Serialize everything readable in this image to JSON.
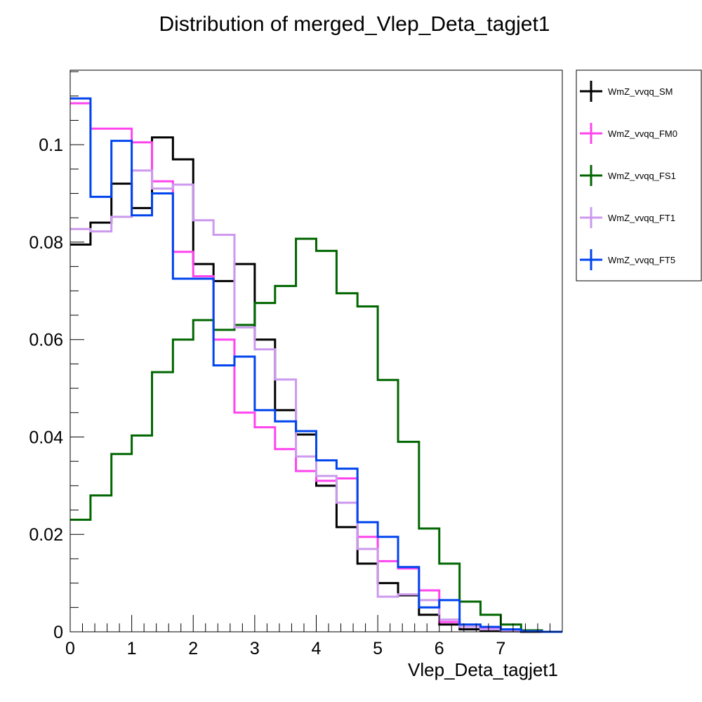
{
  "chart_data": {
    "type": "line",
    "title": "Distribution of merged_Vlep_Deta_tagjet1",
    "xlabel": "Vlep_Deta_tagjet1",
    "ylabel": "",
    "xlim": [
      0,
      8
    ],
    "ylim": [
      0,
      0.1153
    ],
    "x_ticks": [
      {
        "value": 0,
        "label": "0"
      },
      {
        "value": 1,
        "label": "1"
      },
      {
        "value": 2,
        "label": "2"
      },
      {
        "value": 3,
        "label": "3"
      },
      {
        "value": 4,
        "label": "4"
      },
      {
        "value": 5,
        "label": "5"
      },
      {
        "value": 6,
        "label": "6"
      },
      {
        "value": 7,
        "label": "7"
      }
    ],
    "y_ticks": [
      {
        "value": 0,
        "label": "0"
      },
      {
        "value": 0.02,
        "label": "0.02"
      },
      {
        "value": 0.04,
        "label": "0.04"
      },
      {
        "value": 0.06,
        "label": "0.06"
      },
      {
        "value": 0.08,
        "label": "0.08"
      },
      {
        "value": 0.1,
        "label": "0.1"
      }
    ],
    "grid": false,
    "legend_position": "right",
    "histogram": true,
    "bin_edges": [
      0,
      0.33,
      0.67,
      1.0,
      1.33,
      1.67,
      2.0,
      2.33,
      2.67,
      3.0,
      3.33,
      3.67,
      4.0,
      4.33,
      4.67,
      5.0,
      5.33,
      5.67,
      6.0,
      6.33,
      6.67,
      7.0,
      7.33,
      7.67,
      8.0
    ],
    "series": [
      {
        "name": "WmZ_vvqq_SM",
        "color": "#000000",
        "values": [
          0.0795,
          0.084,
          0.092,
          0.087,
          0.1015,
          0.097,
          0.0755,
          0.072,
          0.0755,
          0.06,
          0.0455,
          0.0405,
          0.03,
          0.0215,
          0.014,
          0.01,
          0.0075,
          0.0035,
          0.0015,
          0.0005,
          0.0002,
          0.0001,
          0.0,
          0.0
        ]
      },
      {
        "name": "WmZ_vvqq_FM0",
        "color": "#ff44ee",
        "values": [
          0.1085,
          0.1033,
          0.1033,
          0.1005,
          0.0925,
          0.078,
          0.073,
          0.06,
          0.045,
          0.042,
          0.0375,
          0.033,
          0.031,
          0.0315,
          0.0195,
          0.0145,
          0.013,
          0.0085,
          0.002,
          0.001,
          0.0008,
          0.0005,
          0.0002,
          0.0
        ]
      },
      {
        "name": "WmZ_vvqq_FS1",
        "color": "#006600",
        "values": [
          0.023,
          0.028,
          0.0365,
          0.0403,
          0.0533,
          0.06,
          0.064,
          0.062,
          0.063,
          0.0675,
          0.071,
          0.0807,
          0.0782,
          0.0695,
          0.0668,
          0.0517,
          0.039,
          0.0212,
          0.014,
          0.0062,
          0.0035,
          0.0015,
          0.0003,
          0.0
        ]
      },
      {
        "name": "WmZ_vvqq_FT1",
        "color": "#cc99ee",
        "values": [
          0.0827,
          0.0822,
          0.0852,
          0.0947,
          0.091,
          0.0918,
          0.0845,
          0.0815,
          0.0625,
          0.058,
          0.0518,
          0.036,
          0.032,
          0.0265,
          0.017,
          0.0072,
          0.0077,
          0.0065,
          0.0025,
          0.001,
          0.0005,
          0.0002,
          0.0001,
          0.0
        ]
      },
      {
        "name": "WmZ_vvqq_FT5",
        "color": "#0044ee",
        "values": [
          0.1095,
          0.0893,
          0.1008,
          0.0855,
          0.09,
          0.0725,
          0.0725,
          0.0547,
          0.0565,
          0.0455,
          0.0432,
          0.0412,
          0.0352,
          0.0335,
          0.0225,
          0.0195,
          0.0133,
          0.005,
          0.0065,
          0.0015,
          0.001,
          0.0005,
          0.0001,
          0.0
        ]
      }
    ]
  }
}
